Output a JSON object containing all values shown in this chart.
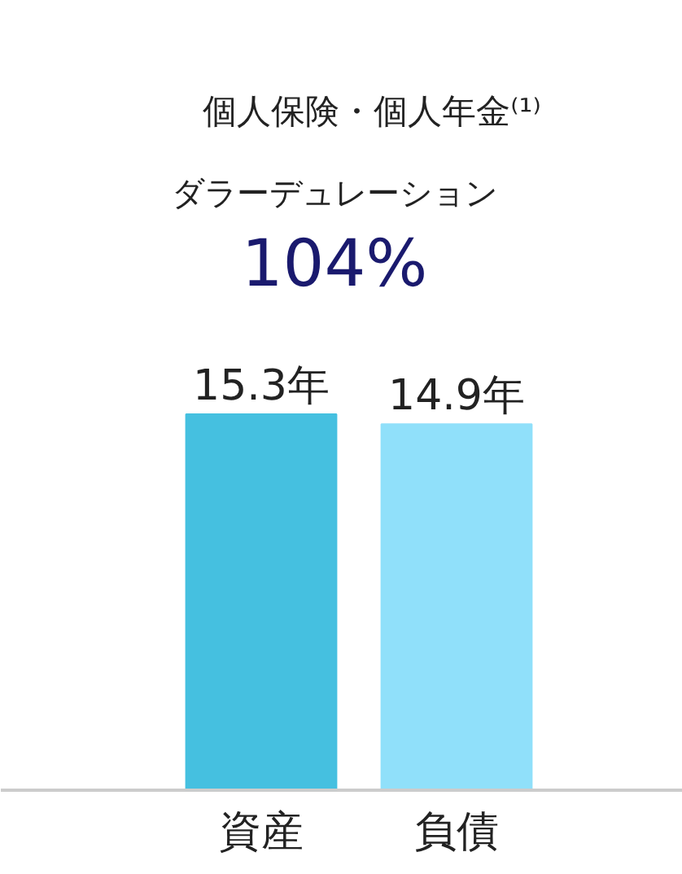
{
  "chart_data": {
    "type": "bar",
    "title": "個人保険・個人年金⁽¹⁾",
    "annotations": [
      "ダラーデュレーション",
      "104%"
    ],
    "categories": [
      "資産",
      "負債"
    ],
    "colors": [
      "#45c0e0",
      "#90e0fa"
    ],
    "values": [
      15.3,
      14.9
    ],
    "value_labels": [
      "15.3年",
      "14.9年"
    ],
    "tick_labels": "x"
  }
}
